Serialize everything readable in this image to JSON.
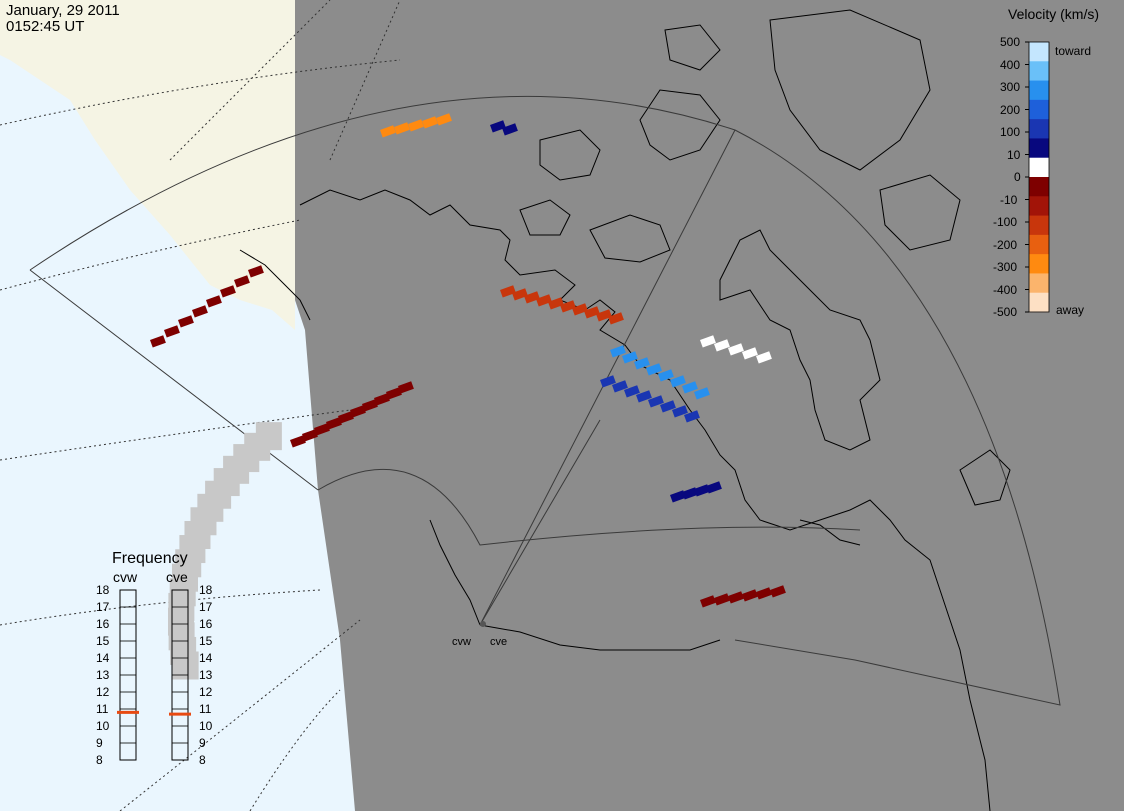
{
  "header": {
    "date": "January, 29 2011",
    "time": "0152:45 UT"
  },
  "colors": {
    "ocean": "#eaf6fe",
    "land_outside": "#f5f4e4",
    "coverage_background": "#8c8c8c",
    "ground_scatter": "#c8c8c8",
    "coastline": "#000000",
    "frequency_marker": "#e84a12",
    "velocity_scale": [
      "#fde0c4",
      "#fbb46c",
      "#ff8a10",
      "#e86010",
      "#c8360c",
      "#a21408",
      "#7e0000",
      "#ffffff",
      "#08087e",
      "#1a36b2",
      "#1e60da",
      "#2890ee",
      "#6ac0f8",
      "#c4e6fe"
    ]
  },
  "colorbar": {
    "title": "Velocity (km/s)",
    "ticks": [
      "500",
      "400",
      "300",
      "200",
      "100",
      "10",
      "0",
      "-10",
      "-100",
      "-200",
      "-300",
      "-400",
      "-500"
    ],
    "toward_label": "toward",
    "away_label": "away"
  },
  "frequency_panel": {
    "title": "Frequency",
    "columns": [
      {
        "radar": "cvw",
        "frequency_mhz": 10.8
      },
      {
        "radar": "cve",
        "frequency_mhz": 10.7
      }
    ],
    "scale_labels": [
      "18",
      "17",
      "16",
      "15",
      "14",
      "13",
      "12",
      "11",
      "10",
      "9",
      "8"
    ]
  },
  "radars": [
    {
      "code": "cvw",
      "marker_icon": "radar-site-dot-icon"
    },
    {
      "code": "cve",
      "marker_icon": "radar-site-dot-icon"
    }
  ]
}
